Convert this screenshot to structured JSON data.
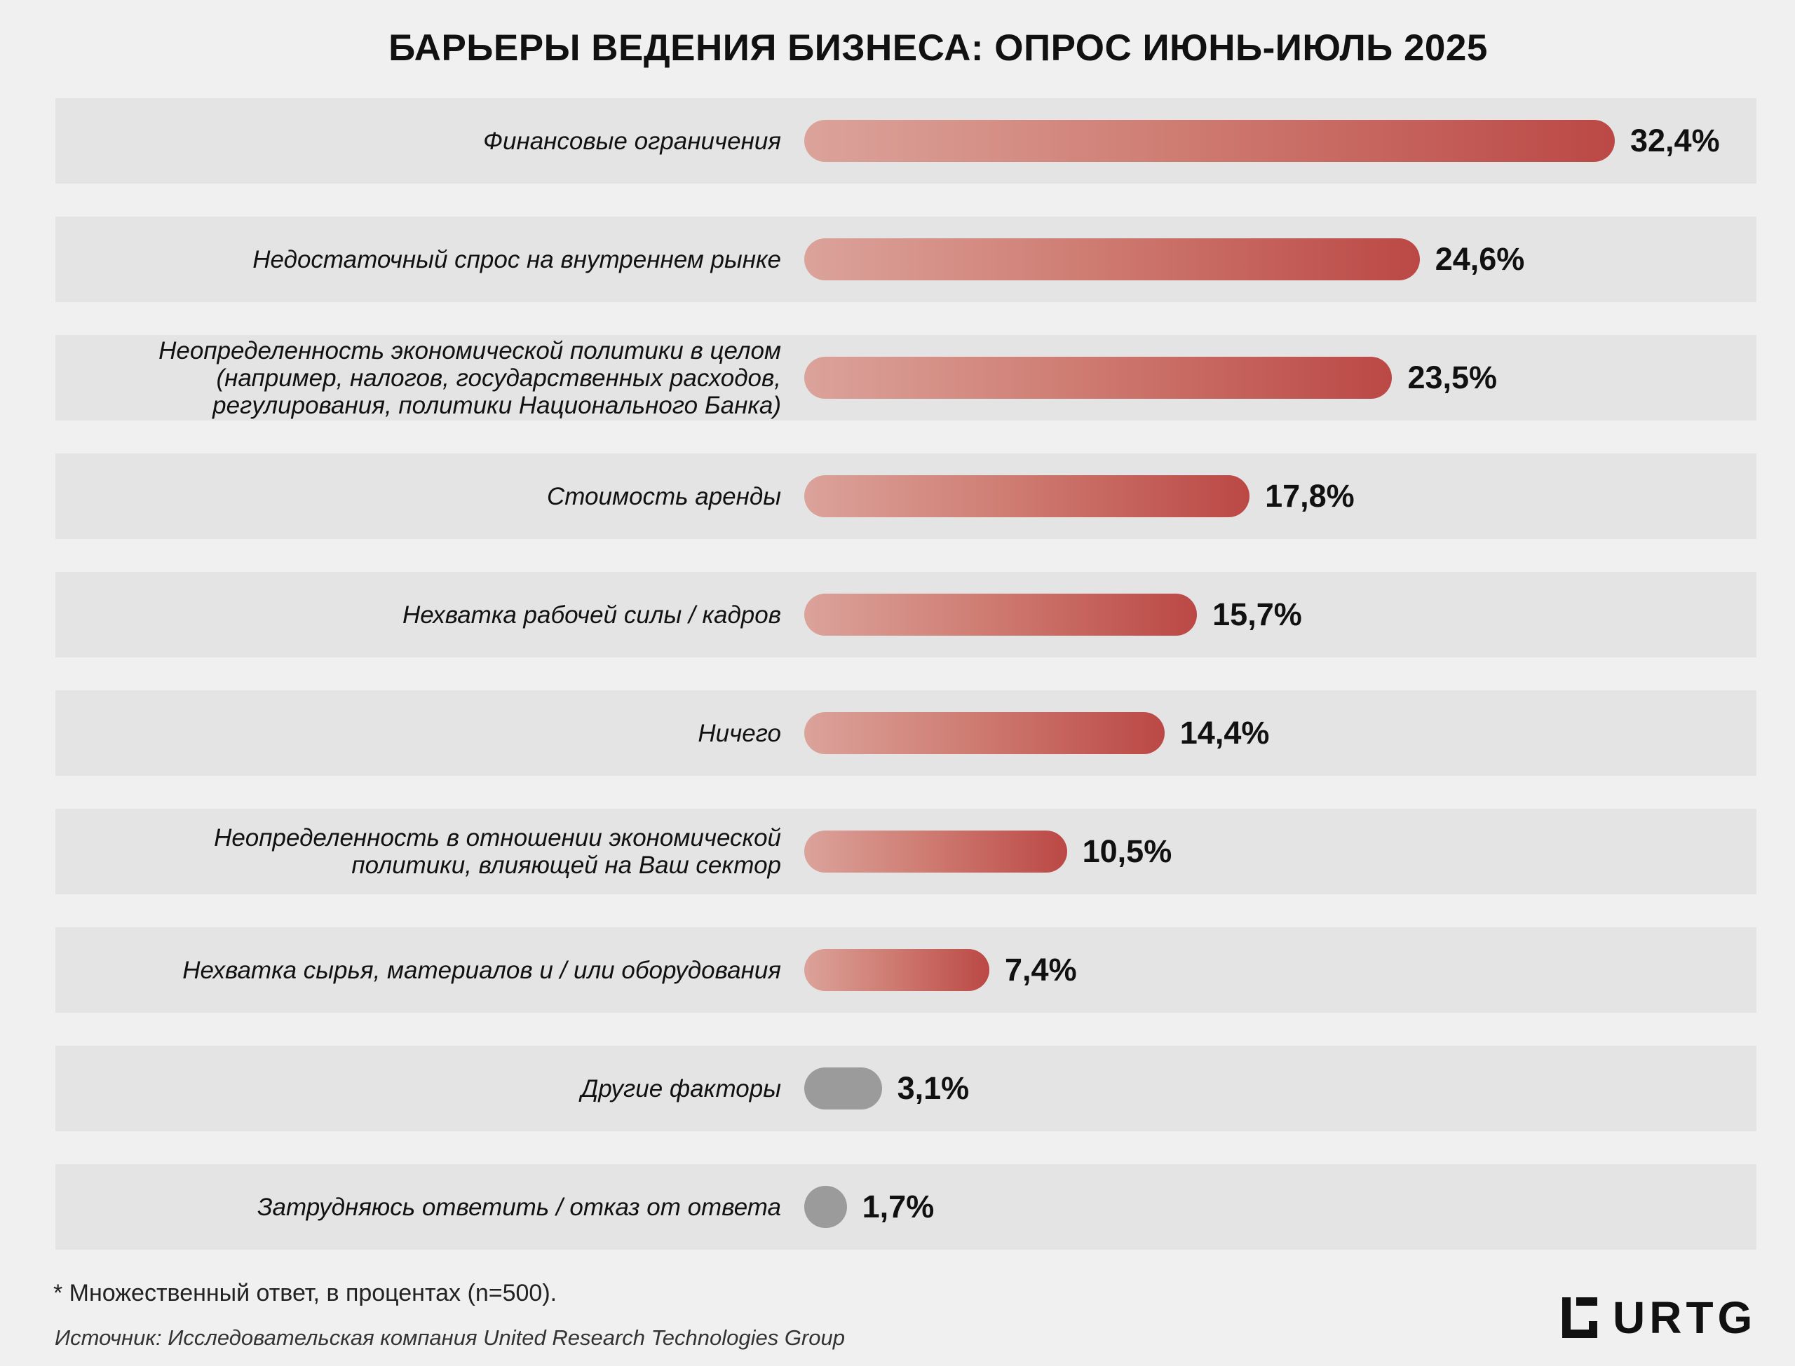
{
  "chart_data": {
    "type": "bar",
    "orientation": "horizontal",
    "title": "БАРЬЕРЫ ВЕДЕНИЯ БИЗНЕСА: ОПРОС ИЮНЬ-ИЮЛЬ 2025",
    "categories": [
      "Финансовые ограничения",
      "Недостаточный спрос на внутреннем рынке",
      "Неопределенность экономической политики в целом\n(например, налогов, государственных расходов,\nрегулирования, политики Национального Банка)",
      "Стоимость аренды",
      "Нехватка рабочей силы / кадров",
      "Ничего",
      "Неопределенность в отношении экономической\nполитики, влияющей на Ваш сектор",
      "Нехватка сырья, материалов и / или оборудования",
      "Другие факторы",
      "Затрудняюсь ответить / отказ от ответа"
    ],
    "values": [
      32.4,
      24.6,
      23.5,
      17.8,
      15.7,
      14.4,
      10.5,
      7.4,
      3.1,
      1.7
    ],
    "value_labels": [
      "32,4%",
      "24,6%",
      "23,5%",
      "17,8%",
      "15,7%",
      "14,4%",
      "10,5%",
      "7,4%",
      "3,1%",
      "1,7%"
    ],
    "bar_styles": [
      "red",
      "red",
      "red",
      "red",
      "red",
      "red",
      "red",
      "red",
      "grey",
      "grey"
    ],
    "colors": {
      "bar_gradient_start": "#dba39b",
      "bar_gradient_end": "#bb4845",
      "bar_neutral": "#9b9b9b",
      "row_background": "#e4e4e4",
      "page_background": "#f0f0f0"
    },
    "xlim": [
      0,
      32.4
    ],
    "grid": false,
    "legend": "none"
  },
  "footnote": "* Множественный ответ, в процентах (n=500).",
  "source": "Источник: Исследовательская компания United Research Technologies Group",
  "logo": {
    "text": "URTG",
    "icon": "urtg-logo-icon"
  }
}
